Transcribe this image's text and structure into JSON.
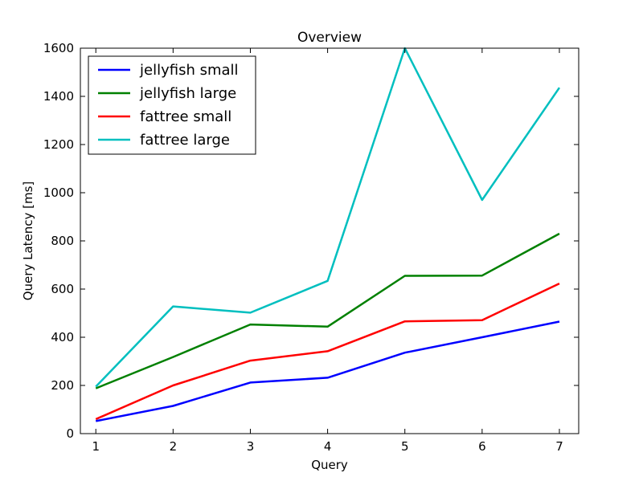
{
  "chart_data": {
    "type": "line",
    "title": "Overview",
    "xlabel": "Query",
    "ylabel": "Query Latency [ms]",
    "x": [
      1,
      2,
      3,
      4,
      5,
      6,
      7
    ],
    "xlim": [
      0.8,
      7.25
    ],
    "ylim": [
      0,
      1600
    ],
    "xticks": [
      1,
      2,
      3,
      4,
      5,
      6,
      7
    ],
    "yticks": [
      0,
      200,
      400,
      600,
      800,
      1000,
      1200,
      1400,
      1600
    ],
    "grid": false,
    "legend_position": "top-left",
    "series": [
      {
        "name": "jellyfish small",
        "color": "#0000ff",
        "values": [
          52,
          115,
          212,
          232,
          336,
          400,
          465
        ]
      },
      {
        "name": "jellyfish large",
        "color": "#008000",
        "values": [
          188,
          318,
          453,
          444,
          655,
          656,
          830
        ]
      },
      {
        "name": "fattree small",
        "color": "#ff0000",
        "values": [
          60,
          200,
          303,
          342,
          466,
          471,
          623
        ]
      },
      {
        "name": "fattree large",
        "color": "#00bfbf",
        "values": [
          195,
          528,
          502,
          634,
          1600,
          970,
          1436
        ]
      }
    ]
  }
}
